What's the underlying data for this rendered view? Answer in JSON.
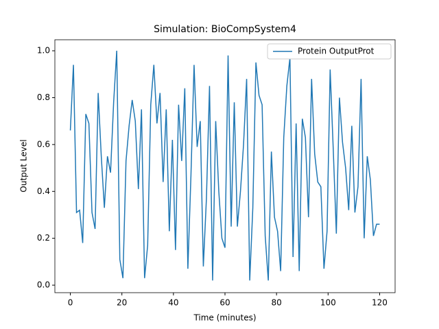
{
  "chart_data": {
    "type": "line",
    "title": "Simulation: BioCompSystem4",
    "xlabel": "Time (minutes)",
    "ylabel": "Output Level",
    "x": [
      0,
      1.2,
      2.4,
      3.6,
      4.8,
      6,
      7.2,
      8.4,
      9.6,
      10.8,
      12,
      13.2,
      14.4,
      15.6,
      16.8,
      18,
      19.2,
      20.4,
      21.6,
      22.8,
      24,
      25.2,
      26.4,
      27.6,
      28.8,
      30,
      31.2,
      32.4,
      33.6,
      34.8,
      36,
      37.2,
      38.4,
      39.6,
      40.8,
      42,
      43.2,
      44.4,
      45.6,
      46.8,
      48,
      49.2,
      50.4,
      51.6,
      52.8,
      54,
      55.2,
      56.4,
      57.6,
      58.8,
      60,
      61.2,
      62.4,
      63.6,
      64.8,
      66,
      67.2,
      68.4,
      69.6,
      70.8,
      72,
      73.2,
      74.4,
      75.6,
      76.8,
      78,
      79.2,
      80.4,
      81.6,
      82.8,
      84,
      85.2,
      86.4,
      87.6,
      88.8,
      90,
      91.2,
      92.4,
      93.6,
      94.8,
      96,
      97.2,
      98.4,
      99.6,
      100.8,
      102,
      103.2,
      104.4,
      105.6,
      106.8,
      108,
      109.2,
      110.4,
      111.6,
      112.8,
      114,
      115.2,
      116.4,
      117.6,
      118.8,
      120
    ],
    "series": [
      {
        "name": "Protein OutputProt",
        "color": "#1f77b4",
        "values": [
          0.66,
          0.94,
          0.31,
          0.32,
          0.18,
          0.73,
          0.69,
          0.31,
          0.24,
          0.82,
          0.55,
          0.33,
          0.55,
          0.48,
          0.78,
          1.0,
          0.11,
          0.03,
          0.53,
          0.68,
          0.79,
          0.7,
          0.41,
          0.75,
          0.03,
          0.17,
          0.77,
          0.94,
          0.69,
          0.82,
          0.44,
          0.75,
          0.23,
          0.62,
          0.15,
          0.77,
          0.53,
          0.84,
          0.07,
          0.47,
          0.94,
          0.59,
          0.7,
          0.08,
          0.37,
          0.85,
          0.02,
          0.7,
          0.4,
          0.2,
          0.16,
          0.98,
          0.25,
          0.78,
          0.25,
          0.4,
          0.6,
          0.88,
          0.02,
          0.33,
          0.95,
          0.81,
          0.77,
          0.21,
          0.02,
          0.57,
          0.29,
          0.23,
          0.06,
          0.63,
          0.85,
          0.97,
          0.12,
          0.69,
          0.06,
          0.71,
          0.63,
          0.29,
          0.88,
          0.56,
          0.44,
          0.42,
          0.07,
          0.23,
          0.92,
          0.58,
          0.22,
          0.8,
          0.61,
          0.5,
          0.32,
          0.68,
          0.31,
          0.42,
          0.88,
          0.2,
          0.55,
          0.45,
          0.21,
          0.26,
          0.26
        ]
      }
    ],
    "xlim": [
      -6,
      126
    ],
    "ylim": [
      -0.032,
      1.047
    ],
    "xticks": [
      0,
      20,
      40,
      60,
      80,
      100,
      120
    ],
    "yticks": [
      {
        "value": 0,
        "label": "0.0"
      },
      0.2,
      0.4,
      0.6,
      0.8,
      {
        "value": 1,
        "label": "1.0"
      }
    ],
    "legend": "upper right"
  }
}
